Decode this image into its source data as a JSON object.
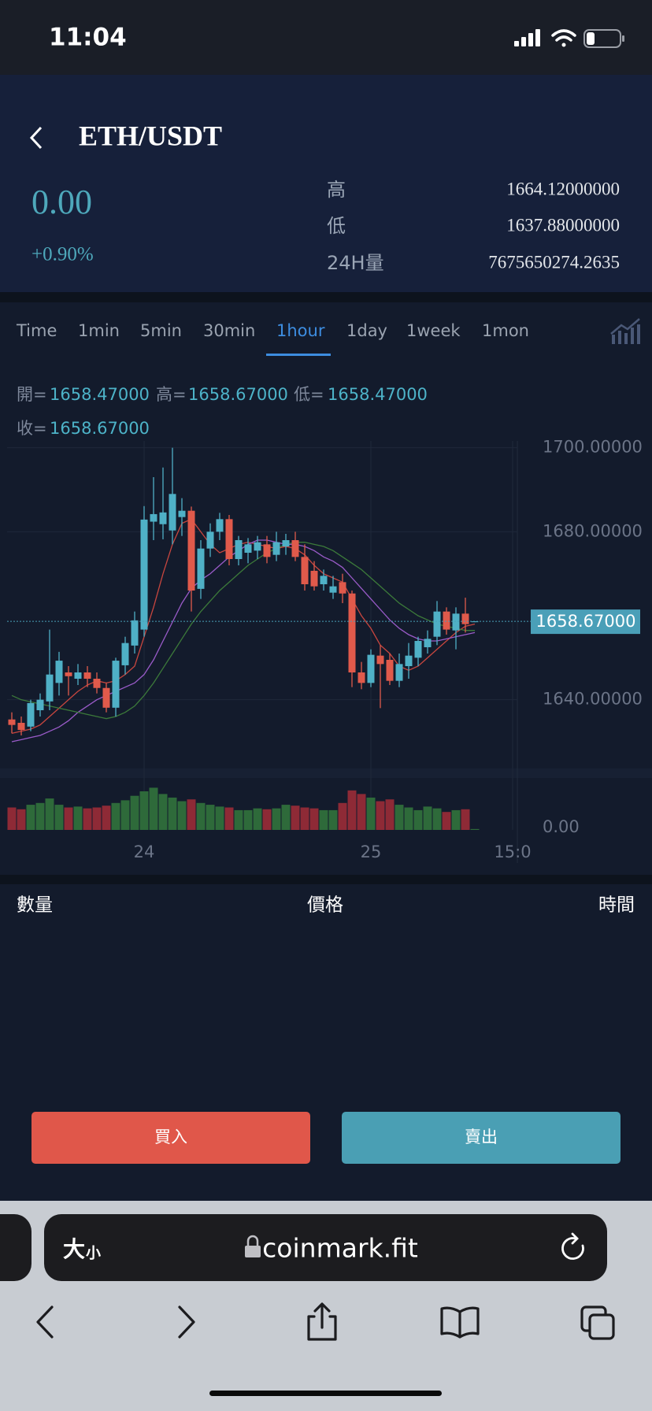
{
  "status_bar": {
    "time": "11:04"
  },
  "header": {
    "title": "ETH/USDT",
    "price": "0.00",
    "change": "+0.90%",
    "stats": [
      {
        "label": "高",
        "value": "1664.12000000"
      },
      {
        "label": "低",
        "value": "1637.88000000"
      },
      {
        "label": "24H量",
        "value": "7675650274.2635"
      }
    ]
  },
  "tabs": {
    "items": [
      "Time",
      "1min",
      "5min",
      "30min",
      "1hour",
      "1day",
      "1week",
      "1mon"
    ],
    "active": 4
  },
  "ohlc_info": [
    {
      "label": "開=",
      "value": "1658.47000"
    },
    {
      "label": "高=",
      "value": "1658.67000"
    },
    {
      "label": "低=",
      "value": "1658.47000"
    },
    {
      "label": "收=",
      "value": "1658.67000"
    }
  ],
  "chart_data": [
    {
      "type": "candlestick",
      "categories": [
        null,
        null,
        null,
        null,
        null,
        null,
        null,
        null,
        null,
        null,
        null,
        null,
        null,
        null,
        "24",
        null,
        null,
        null,
        null,
        null,
        null,
        null,
        null,
        null,
        null,
        null,
        null,
        null,
        null,
        null,
        null,
        null,
        null,
        null,
        null,
        null,
        null,
        null,
        "25",
        null,
        null,
        null,
        null,
        null,
        null,
        null,
        null,
        null,
        null,
        null,
        null,
        null,
        null,
        "15:0"
      ],
      "open": [
        1635.3,
        1634.5,
        1633.6,
        1637.5,
        1639.6,
        1644,
        1646.5,
        1645,
        1646.5,
        1645,
        1642.8,
        1638.1,
        1648.2,
        1652.9,
        1656.7,
        1682.4,
        1681.8,
        1680.3,
        1683.5,
        1685,
        1666.4,
        1676,
        1680,
        1683,
        1673.5,
        1675,
        1675.5,
        1677,
        1674.5,
        1676.5,
        1678,
        1674,
        1670.7,
        1667.5,
        1665.5,
        1668,
        1665.3,
        1646.5,
        1644,
        1650.5,
        1649.5,
        1644.5,
        1648,
        1650,
        1652.5,
        1655,
        1661,
        1656.5,
        1660.5,
        1658.47,
        null,
        null,
        null,
        null
      ],
      "high": [
        1637,
        1636,
        1640,
        1641.5,
        1656.7,
        1651.4,
        1648,
        1648.5,
        1648,
        1646.5,
        1644,
        1650,
        1655,
        1661,
        1686.1,
        1693,
        1695.3,
        1700,
        1688,
        1686,
        1678,
        1682,
        1684.5,
        1684,
        1679,
        1678.5,
        1679,
        1679,
        1680,
        1679.5,
        1680,
        1677,
        1673,
        1671,
        1669.5,
        1670,
        1666,
        1649,
        1652,
        1653,
        1651,
        1651,
        1653.5,
        1655,
        1656.5,
        1663.5,
        1662,
        1662,
        1664.3,
        1658.67,
        null,
        null,
        null,
        null
      ],
      "low": [
        1632,
        1631.5,
        1632.5,
        1636,
        1637.5,
        1641,
        1641,
        1643.5,
        1643,
        1641.5,
        1637,
        1636,
        1646,
        1651,
        1655,
        1678,
        1678.2,
        1677,
        1679,
        1661,
        1664,
        1674,
        1678,
        1672,
        1672,
        1672.5,
        1673.5,
        1672.5,
        1673,
        1674.5,
        1673,
        1666,
        1666,
        1666,
        1664,
        1663,
        1643,
        1642.5,
        1643,
        1638,
        1643.5,
        1643,
        1645,
        1648,
        1651,
        1653,
        1655.5,
        1652,
        1656,
        1658.47,
        null,
        null,
        null,
        null
      ],
      "close": [
        1634,
        1632.8,
        1639.2,
        1640,
        1646,
        1649.3,
        1645.6,
        1646.5,
        1645,
        1642.8,
        1638.1,
        1649.3,
        1653.5,
        1658.9,
        1682.9,
        1684.2,
        1684.6,
        1689,
        1685,
        1666,
        1676,
        1680,
        1683,
        1673.5,
        1678,
        1677,
        1677.5,
        1674,
        1677.5,
        1678,
        1674,
        1667.5,
        1667,
        1669.5,
        1667,
        1665.3,
        1646.5,
        1644,
        1650.7,
        1648.5,
        1644.5,
        1648.5,
        1650.5,
        1654,
        1654.5,
        1661,
        1656.7,
        1660.5,
        1658,
        1658.67,
        null,
        null,
        null,
        null
      ],
      "up_color": "#4fb0c6",
      "down_color": "#e05a4b",
      "lines": [
        {
          "color": "#c8463f",
          "values": [
            1632,
            1632.5,
            1633,
            1634,
            1636,
            1638,
            1640,
            1642,
            1643.5,
            1644.5,
            1644,
            1644.5,
            1646,
            1648,
            1655,
            1662,
            1670,
            1677,
            1682,
            1683,
            1680,
            1677,
            1675,
            1676,
            1677,
            1677.5,
            1677,
            1676.5,
            1676,
            1676.5,
            1676,
            1674.5,
            1672,
            1670,
            1669,
            1668,
            1664,
            1660,
            1657,
            1653,
            1651,
            1648,
            1647,
            1648,
            1650,
            1652,
            1654,
            1656,
            1657.5,
            1658,
            null,
            null,
            null,
            null
          ]
        },
        {
          "color": "#9a5bc9",
          "values": [
            1630,
            1630.5,
            1631,
            1631.5,
            1632.5,
            1633.5,
            1635,
            1637,
            1638.5,
            1640,
            1641,
            1642,
            1643,
            1644,
            1646,
            1649.5,
            1654,
            1658.5,
            1663,
            1666.5,
            1668.5,
            1670,
            1672,
            1674,
            1675.5,
            1677,
            1678,
            1678,
            1677.5,
            1677,
            1677,
            1676.5,
            1675.5,
            1674,
            1673,
            1671.5,
            1669,
            1666.5,
            1664,
            1661.5,
            1659,
            1657,
            1655.5,
            1654.5,
            1654,
            1654,
            1654.5,
            1655,
            1655.5,
            1656,
            null,
            null,
            null,
            null
          ]
        },
        {
          "color": "#3c7a3a",
          "values": [
            1641,
            1640,
            1639.5,
            1639,
            1638.5,
            1638,
            1637.5,
            1637,
            1636.5,
            1636,
            1635.5,
            1636,
            1637,
            1638.5,
            1641,
            1644,
            1647.5,
            1651,
            1654.5,
            1658,
            1661,
            1663.5,
            1666,
            1668,
            1670,
            1672,
            1673.5,
            1675,
            1676,
            1677,
            1677.5,
            1677.5,
            1677,
            1676.5,
            1675.5,
            1674,
            1672.5,
            1671,
            1669,
            1667,
            1665,
            1663,
            1661.5,
            1660,
            1659,
            1658,
            1657.5,
            1657,
            1656.5,
            1656.5,
            null,
            null,
            null,
            null
          ]
        }
      ],
      "ylim": [
        1624,
        1702
      ],
      "yticks": [
        {
          "value": 1640,
          "label": "1640.00000"
        },
        {
          "value": 1680,
          "label": "1680.00000"
        },
        {
          "value": 1700,
          "label": "1700.00000"
        }
      ],
      "grid": true,
      "last_price": {
        "value": 1658.67,
        "label": "1658.67000"
      },
      "last_price_color": "#4a9fb8"
    },
    {
      "type": "bar",
      "values": [
        25,
        23,
        28,
        30,
        35,
        28,
        25,
        26,
        24,
        25,
        27,
        30,
        33,
        38,
        43,
        47,
        40,
        36,
        32,
        34,
        30,
        28,
        26,
        25,
        22,
        22,
        24,
        23,
        24,
        28,
        27,
        25,
        24,
        22,
        22,
        30,
        44,
        40,
        36,
        32,
        34,
        28,
        25,
        22,
        26,
        24,
        20,
        22,
        23,
        1,
        null,
        null,
        null,
        null
      ],
      "up_color": "#2e6a3a",
      "down_color": "#8e2a36",
      "ylim": [
        0,
        50
      ],
      "yticks": [
        {
          "value": 0,
          "label": "0.00"
        }
      ]
    }
  ],
  "trades": {
    "columns": [
      "數量",
      "價格",
      "時間"
    ]
  },
  "buttons": {
    "buy": "買入",
    "sell": "賣出"
  },
  "browser": {
    "text_size": [
      "大",
      "小"
    ],
    "url": "coinmark.fit"
  }
}
